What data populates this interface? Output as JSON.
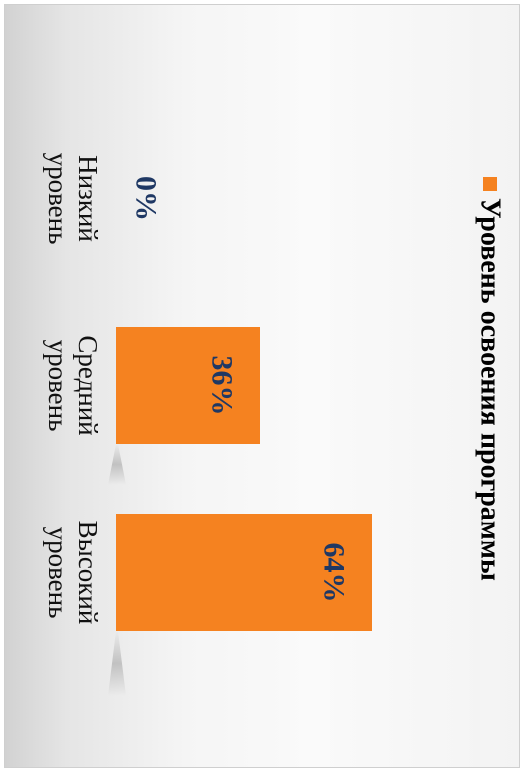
{
  "chart_data": {
    "type": "bar",
    "orientation": "rotated-90-clockwise",
    "categories": [
      "Низкий\nуровень",
      "Средний\nуровень",
      "Высокий\nуровень"
    ],
    "series": [
      {
        "name": "Уровень освоения программы",
        "values": [
          0,
          36,
          64
        ],
        "data_labels": [
          "0%",
          "36%",
          "64%"
        ],
        "color": "#f58220"
      }
    ],
    "ylim": [
      0,
      70
    ],
    "legend_position": "top",
    "grid": false,
    "label_color": "#1f3864"
  }
}
